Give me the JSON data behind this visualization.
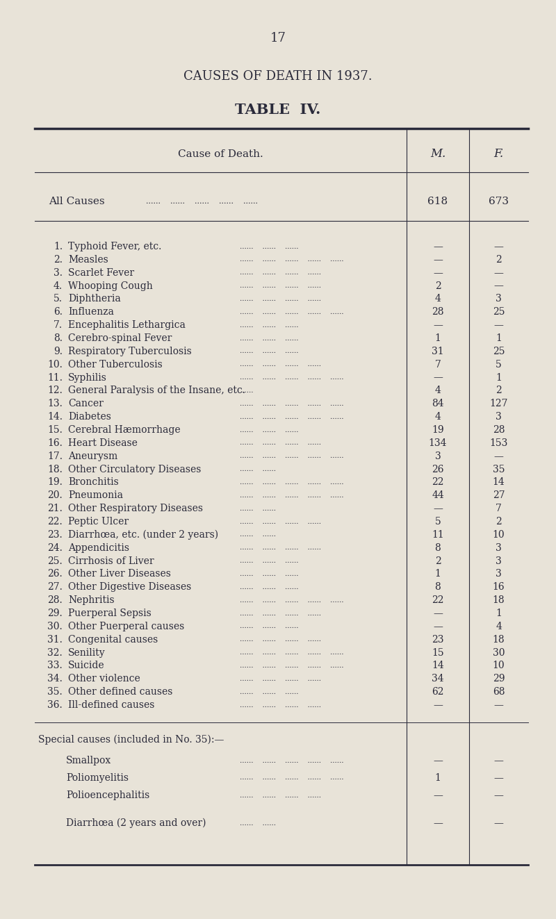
{
  "page_number": "17",
  "title": "CAUSES OF DEATH IN 1937.",
  "subtitle": "TABLE  IV.",
  "bg_color": "#e8e3d8",
  "header_col1": "Cause of Death.",
  "header_col2": "M.",
  "header_col3": "F.",
  "all_causes_label": "All Causes",
  "all_causes_dots": "......    ......    ......    ......    ......",
  "all_causes_m": "618",
  "all_causes_f": "673",
  "rows": [
    [
      "1.",
      "Typhoid Fever, etc.",
      "......    ......    ......",
      "—",
      "—"
    ],
    [
      "2.",
      "Measles",
      "......    ......    ......    ......    ......",
      "—",
      "2"
    ],
    [
      "3.",
      "Scarlet Fever",
      "......    ......    ......    ......",
      "—",
      "—"
    ],
    [
      "4.",
      "Whooping Cough",
      "......    ......    ......    ......",
      "2",
      "—"
    ],
    [
      "5.",
      "Diphtheria",
      "......    ......    ......    ......",
      "4",
      "3"
    ],
    [
      "6.",
      "Influenza",
      "......    ......    ......    ......    ......",
      "28",
      "25"
    ],
    [
      "7.",
      "Encephalitis Lethargica",
      "......    ......    ......",
      "—",
      "—"
    ],
    [
      "8.",
      "Cerebro-spinal Fever",
      "......    ......    ......",
      "1",
      "1"
    ],
    [
      "9.",
      "Respiratory Tuberculosis",
      "......    ......    ......",
      "31",
      "25"
    ],
    [
      "10.",
      "Other Tuberculosis",
      "......    ......    ......    ......",
      "7",
      "5"
    ],
    [
      "11.",
      "Syphilis",
      "......    ......    ......    ......    ......",
      "—",
      "1"
    ],
    [
      "12.",
      "General Paralysis of the Insane, etc.",
      "......",
      "4",
      "2"
    ],
    [
      "13.",
      "Cancer",
      "......    ......    ......    ......    ......",
      "84",
      "127"
    ],
    [
      "14.",
      "Diabetes",
      "......    ......    ......    ......    ......",
      "4",
      "3"
    ],
    [
      "15.",
      "Cerebral Hæmorrhage",
      "......    ......    ......",
      "19",
      "28"
    ],
    [
      "16.",
      "Heart Disease",
      "......    ......    ......    ......",
      "134",
      "153"
    ],
    [
      "17.",
      "Aneurysm",
      "......    ......    ......    ......    ......",
      "3",
      "—"
    ],
    [
      "18.",
      "Other Circulatory Diseases",
      "......    ......",
      "26",
      "35"
    ],
    [
      "19.",
      "Bronchitis",
      "......    ......    ......    ......    ......",
      "22",
      "14"
    ],
    [
      "20.",
      "Pneumonia",
      "......    ......    ......    ......    ......",
      "44",
      "27"
    ],
    [
      "21.",
      "Other Respiratory Diseases",
      "......    ......",
      "—",
      "7"
    ],
    [
      "22.",
      "Peptic Ulcer",
      "......    ......    ......    ......",
      "5",
      "2"
    ],
    [
      "23.",
      "Diarrhœa, etc. (under 2 years)",
      "......    ......",
      "11",
      "10"
    ],
    [
      "24.",
      "Appendicitis",
      "......    ......    ......    ......",
      "8",
      "3"
    ],
    [
      "25.",
      "Cirrhosis of Liver",
      "......    ......    ......",
      "2",
      "3"
    ],
    [
      "26.",
      "Other Liver Diseases",
      "......    ......    ......",
      "1",
      "3"
    ],
    [
      "27.",
      "Other Digestive Diseases",
      "......    ......    ......",
      "8",
      "16"
    ],
    [
      "28.",
      "Nephritis",
      "......    ......    ......    ......    ......",
      "22",
      "18"
    ],
    [
      "29.",
      "Puerperal Sepsis",
      "......    ......    ......    ......",
      "—",
      "1"
    ],
    [
      "30.",
      "Other Puerperal causes",
      "......    ......    ......",
      "—",
      "4"
    ],
    [
      "31.",
      "Congenital causes",
      "......    ......    ......    ......",
      "23",
      "18"
    ],
    [
      "32.",
      "Senility",
      "......    ......    ......    ......    ......",
      "15",
      "30"
    ],
    [
      "33.",
      "Suicide",
      "......    ......    ......    ......    ......",
      "14",
      "10"
    ],
    [
      "34.",
      "Other violence",
      "......    ......    ......    ......",
      "34",
      "29"
    ],
    [
      "35.",
      "Other defined causes",
      "......    ......    ......",
      "62",
      "68"
    ],
    [
      "36.",
      "Ill-defined causes",
      "......    ......    ......    ......",
      "—",
      "—"
    ]
  ],
  "special_header": "Special causes (included in No. 35):—",
  "special_rows": [
    [
      "Smallpox",
      "......    ......    ......    ......    ......",
      "—",
      "—"
    ],
    [
      "Poliomyelitis",
      "......    ......    ......    ......    ......",
      "1",
      "—"
    ],
    [
      "Polioencephalitis",
      "......    ......    ......    ......",
      "—",
      "—"
    ],
    [
      "Diarrhœa (2 years and over)",
      "......    ......",
      "—",
      "—"
    ]
  ],
  "font_family": "serif",
  "text_color": "#2a2a3a"
}
